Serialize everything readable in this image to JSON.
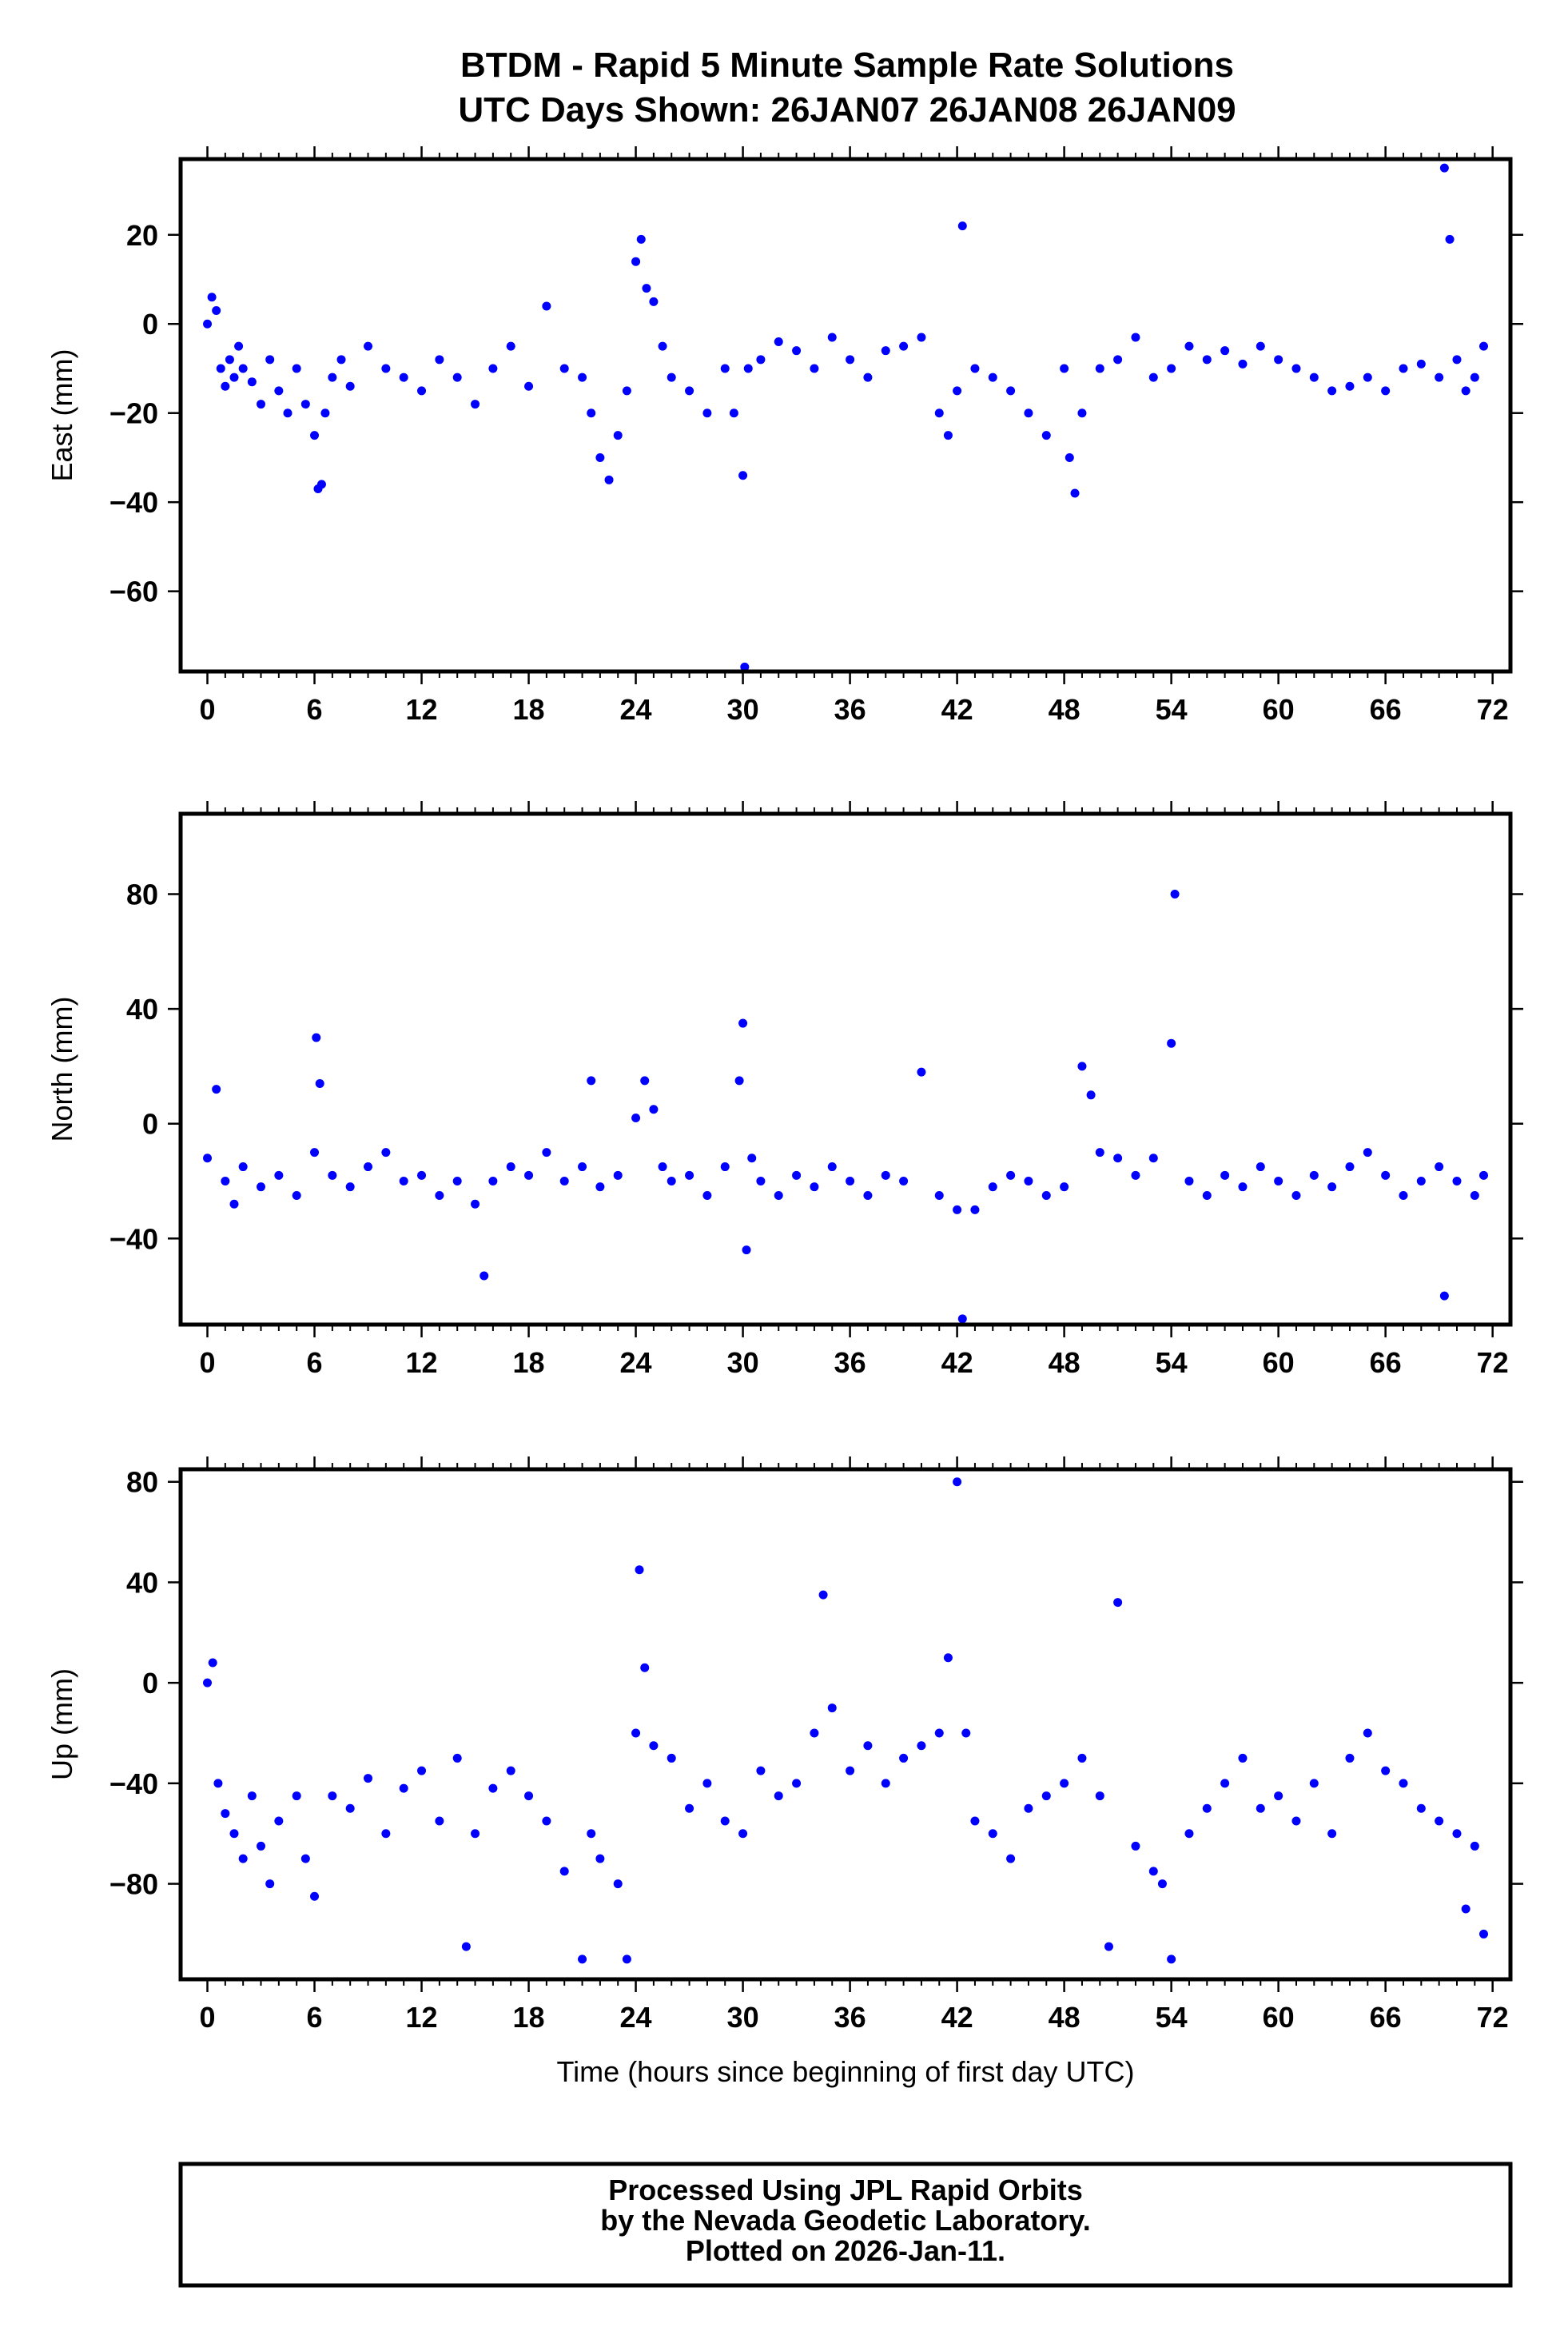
{
  "header": {
    "title_line1": "BTDM - Rapid 5 Minute Sample Rate Solutions",
    "title_line2": "UTC Days Shown:  26JAN07 26JAN08 26JAN09"
  },
  "footer": {
    "line1": "Processed Using JPL Rapid Orbits",
    "line2": "by the Nevada Geodetic Laboratory.",
    "line3": "Plotted on 2026-Jan-11."
  },
  "colors": {
    "points": "#0000ff",
    "axes": "#000000",
    "background": "#ffffff"
  },
  "chart_data": [
    {
      "type": "scatter",
      "ylabel": "East (mm)",
      "xlabel": "",
      "xlim": [
        -1.5,
        73
      ],
      "ylim": [
        -78,
        37
      ],
      "xticks": [
        0,
        6,
        12,
        18,
        24,
        30,
        36,
        42,
        48,
        54,
        60,
        66,
        72
      ],
      "yticks": [
        20,
        0,
        -20,
        -40,
        -60
      ],
      "x": [
        0.0,
        0.25,
        0.5,
        0.75,
        1.0,
        1.25,
        1.5,
        1.75,
        2.0,
        2.5,
        3.0,
        3.5,
        4.0,
        4.5,
        5.0,
        5.5,
        6.0,
        6.2,
        6.4,
        6.6,
        7.0,
        7.5,
        8.0,
        9.0,
        10.0,
        11.0,
        12.0,
        13.0,
        14.0,
        15.0,
        16.0,
        17.0,
        18.0,
        19.0,
        20.0,
        21.0,
        21.5,
        22.0,
        22.5,
        23.0,
        23.5,
        24.0,
        24.3,
        24.6,
        25.0,
        25.5,
        26.0,
        27.0,
        28.0,
        29.0,
        29.5,
        30.0,
        30.1,
        30.3,
        31.0,
        32.0,
        33.0,
        34.0,
        35.0,
        36.0,
        37.0,
        38.0,
        39.0,
        40.0,
        41.0,
        41.5,
        42.0,
        42.3,
        43.0,
        44.0,
        45.0,
        46.0,
        47.0,
        48.0,
        48.3,
        48.6,
        49.0,
        50.0,
        51.0,
        52.0,
        53.0,
        54.0,
        55.0,
        56.0,
        57.0,
        58.0,
        59.0,
        60.0,
        61.0,
        62.0,
        63.0,
        64.0,
        65.0,
        66.0,
        67.0,
        68.0,
        69.0,
        69.3,
        69.6,
        70.0,
        70.5,
        71.0,
        71.5
      ],
      "y": [
        0,
        6,
        3,
        -10,
        -14,
        -8,
        -12,
        -5,
        -10,
        -13,
        -18,
        -8,
        -15,
        -20,
        -10,
        -18,
        -25,
        -37,
        -36,
        -20,
        -12,
        -8,
        -14,
        -5,
        -10,
        -12,
        -15,
        -8,
        -12,
        -18,
        -10,
        -5,
        -14,
        4,
        -10,
        -12,
        -20,
        -30,
        -35,
        -25,
        -15,
        14,
        19,
        8,
        5,
        -5,
        -12,
        -15,
        -20,
        -10,
        -20,
        -34,
        -77,
        -10,
        -8,
        -4,
        -6,
        -10,
        -3,
        -8,
        -12,
        -6,
        -5,
        -3,
        -20,
        -25,
        -15,
        22,
        -10,
        -12,
        -15,
        -20,
        -25,
        -10,
        -30,
        -38,
        -20,
        -10,
        -8,
        -3,
        -12,
        -10,
        -5,
        -8,
        -6,
        -9,
        -5,
        -8,
        -10,
        -12,
        -15,
        -14,
        -12,
        -15,
        -10,
        -9,
        -12,
        35,
        19,
        -8,
        -15,
        -12,
        -5
      ]
    },
    {
      "type": "scatter",
      "ylabel": "North (mm)",
      "xlabel": "",
      "xlim": [
        -1.5,
        73
      ],
      "ylim": [
        -70,
        108
      ],
      "xticks": [
        0,
        6,
        12,
        18,
        24,
        30,
        36,
        42,
        48,
        54,
        60,
        66,
        72
      ],
      "yticks": [
        80,
        40,
        0,
        -40
      ],
      "x": [
        0.0,
        0.5,
        1.0,
        1.5,
        2.0,
        3.0,
        4.0,
        5.0,
        6.0,
        6.1,
        6.3,
        7.0,
        8.0,
        9.0,
        10.0,
        11.0,
        12.0,
        13.0,
        14.0,
        15.0,
        15.5,
        16.0,
        17.0,
        18.0,
        19.0,
        20.0,
        21.0,
        21.5,
        22.0,
        23.0,
        24.0,
        24.5,
        25.0,
        25.5,
        26.0,
        27.0,
        28.0,
        29.0,
        29.8,
        30.0,
        30.2,
        30.5,
        31.0,
        32.0,
        33.0,
        34.0,
        35.0,
        36.0,
        37.0,
        38.0,
        39.0,
        40.0,
        41.0,
        42.0,
        42.3,
        43.0,
        44.0,
        45.0,
        46.0,
        47.0,
        48.0,
        49.0,
        49.5,
        50.0,
        51.0,
        52.0,
        53.0,
        54.0,
        54.2,
        55.0,
        56.0,
        57.0,
        58.0,
        59.0,
        60.0,
        61.0,
        62.0,
        63.0,
        64.0,
        65.0,
        66.0,
        67.0,
        68.0,
        69.0,
        69.3,
        70.0,
        71.0,
        71.5
      ],
      "y": [
        -12,
        12,
        -20,
        -28,
        -15,
        -22,
        -18,
        -25,
        -10,
        30,
        14,
        -18,
        -22,
        -15,
        -10,
        -20,
        -18,
        -25,
        -20,
        -28,
        -53,
        -20,
        -15,
        -18,
        -10,
        -20,
        -15,
        15,
        -22,
        -18,
        2,
        15,
        5,
        -15,
        -20,
        -18,
        -25,
        -15,
        15,
        35,
        -44,
        -12,
        -20,
        -25,
        -18,
        -22,
        -15,
        -20,
        -25,
        -18,
        -20,
        18,
        -25,
        -30,
        -68,
        -30,
        -22,
        -18,
        -20,
        -25,
        -22,
        20,
        10,
        -10,
        -12,
        -18,
        -12,
        28,
        80,
        -20,
        -25,
        -18,
        -22,
        -15,
        -20,
        -25,
        -18,
        -22,
        -15,
        -10,
        -18,
        -25,
        -20,
        -15,
        -60,
        -20,
        -25,
        -18
      ]
    },
    {
      "type": "scatter",
      "ylabel": "Up (mm)",
      "xlabel": "Time (hours since beginning of first day UTC)",
      "xlim": [
        -1.5,
        73
      ],
      "ylim": [
        -118,
        85
      ],
      "xticks": [
        0,
        6,
        12,
        18,
        24,
        30,
        36,
        42,
        48,
        54,
        60,
        66,
        72
      ],
      "yticks": [
        80,
        40,
        0,
        -40,
        -80
      ],
      "x": [
        0.0,
        0.3,
        0.6,
        1.0,
        1.5,
        2.0,
        2.5,
        3.0,
        3.5,
        4.0,
        5.0,
        5.5,
        6.0,
        7.0,
        8.0,
        9.0,
        10.0,
        11.0,
        12.0,
        13.0,
        14.0,
        14.5,
        15.0,
        16.0,
        17.0,
        18.0,
        19.0,
        20.0,
        21.0,
        21.5,
        22.0,
        23.0,
        23.5,
        24.0,
        24.2,
        24.5,
        25.0,
        26.0,
        27.0,
        28.0,
        29.0,
        30.0,
        31.0,
        32.0,
        33.0,
        34.0,
        34.5,
        35.0,
        36.0,
        37.0,
        38.0,
        39.0,
        40.0,
        41.0,
        41.5,
        42.0,
        42.5,
        43.0,
        44.0,
        45.0,
        46.0,
        47.0,
        48.0,
        49.0,
        50.0,
        50.5,
        51.0,
        52.0,
        53.0,
        53.5,
        54.0,
        55.0,
        56.0,
        57.0,
        58.0,
        59.0,
        60.0,
        61.0,
        62.0,
        63.0,
        64.0,
        65.0,
        66.0,
        67.0,
        68.0,
        69.0,
        70.0,
        70.5,
        71.0,
        71.5
      ],
      "y": [
        0,
        8,
        -40,
        -52,
        -60,
        -70,
        -45,
        -65,
        -80,
        -55,
        -45,
        -70,
        -85,
        -45,
        -50,
        -38,
        -60,
        -42,
        -35,
        -55,
        -30,
        -105,
        -60,
        -42,
        -35,
        -45,
        -55,
        -75,
        -110,
        -60,
        -70,
        -80,
        -110,
        -20,
        45,
        6,
        -25,
        -30,
        -50,
        -40,
        -55,
        -60,
        -35,
        -45,
        -40,
        -20,
        35,
        -10,
        -35,
        -25,
        -40,
        -30,
        -25,
        -20,
        10,
        80,
        -20,
        -55,
        -60,
        -70,
        -50,
        -45,
        -40,
        -30,
        -45,
        -105,
        32,
        -65,
        -75,
        -80,
        -110,
        -60,
        -50,
        -40,
        -30,
        -50,
        -45,
        -55,
        -40,
        -60,
        -30,
        -20,
        -35,
        -40,
        -50,
        -55,
        -60,
        -90,
        -65,
        -100
      ]
    }
  ]
}
